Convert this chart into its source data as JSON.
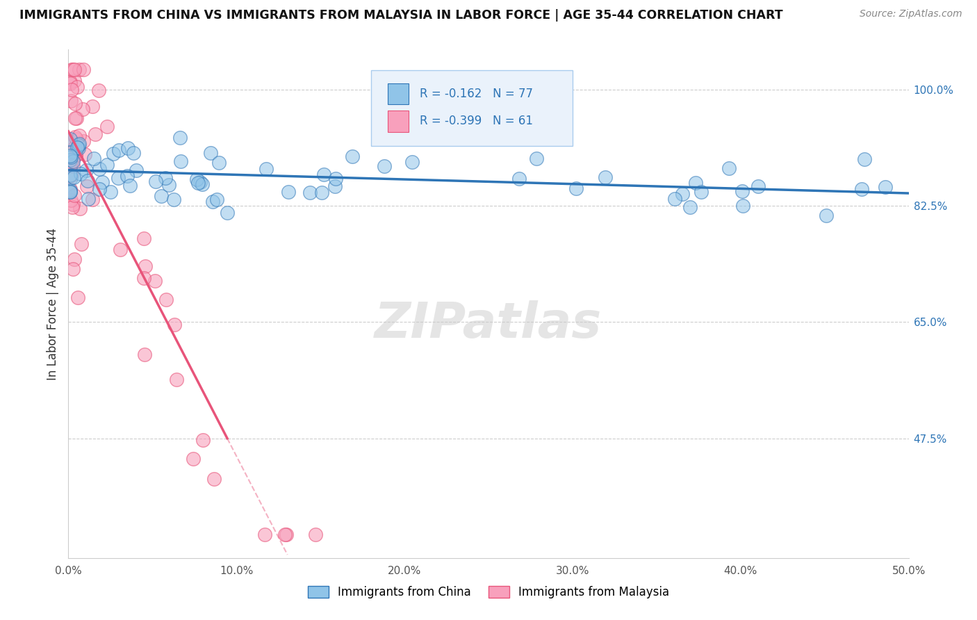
{
  "title": "IMMIGRANTS FROM CHINA VS IMMIGRANTS FROM MALAYSIA IN LABOR FORCE | AGE 35-44 CORRELATION CHART",
  "source": "Source: ZipAtlas.com",
  "ylabel": "In Labor Force | Age 35-44",
  "xlim": [
    0.0,
    0.5
  ],
  "ylim": [
    0.295,
    1.06
  ],
  "xtick_labels": [
    "0.0%",
    "10.0%",
    "20.0%",
    "30.0%",
    "40.0%",
    "50.0%"
  ],
  "xtick_vals": [
    0.0,
    0.1,
    0.2,
    0.3,
    0.4,
    0.5
  ],
  "ytick_labels": [
    "47.5%",
    "65.0%",
    "82.5%",
    "100.0%"
  ],
  "ytick_vals": [
    0.475,
    0.65,
    0.825,
    1.0
  ],
  "china_color": "#90C4E8",
  "malaysia_color": "#F8A0BC",
  "china_line_color": "#2E75B6",
  "malaysia_line_color": "#E8547A",
  "R_china": -0.162,
  "N_china": 77,
  "R_malaysia": -0.399,
  "N_malaysia": 61,
  "china_seed": 12,
  "malaysia_seed": 7,
  "watermark_text": "ZIPatlas",
  "legend_label_china": "Immigrants from China",
  "legend_label_malaysia": "Immigrants from Malaysia"
}
